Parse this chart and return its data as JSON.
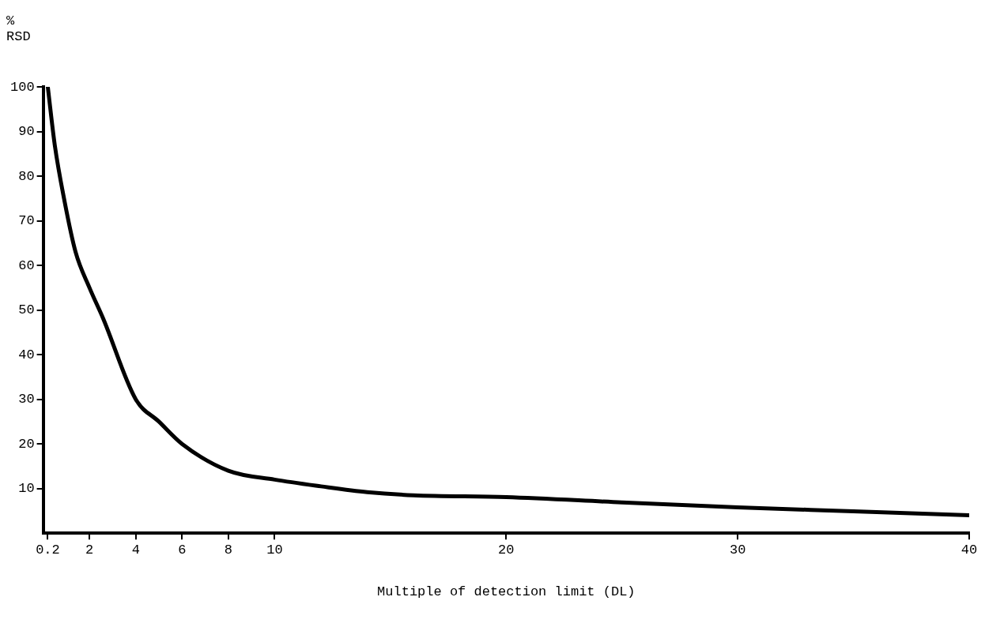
{
  "chart_data": {
    "type": "line",
    "ylabel": "%\nRSD",
    "xlabel": "Multiple of detection limit (DL)",
    "x": [
      0.2,
      0.5,
      0.9,
      1.4,
      2,
      2.6,
      4,
      5,
      6,
      8,
      10,
      12,
      14,
      16,
      20,
      25,
      30,
      35,
      40
    ],
    "series": [
      {
        "color": "#000000",
        "values": [
          100,
          87,
          75,
          63,
          55,
          48,
          30,
          25,
          20,
          14,
          12,
          10.5,
          9.2,
          8.5,
          8.1,
          6.9,
          5.8,
          4.9,
          4
        ]
      }
    ],
    "xlim": [
      0,
      40
    ],
    "xticks": [
      {
        "value": 0.2,
        "label": "0.2"
      },
      2,
      4,
      6,
      8,
      10,
      20,
      30,
      40
    ],
    "ylim": [
      0,
      100
    ],
    "yticks": [
      10,
      20,
      30,
      40,
      50,
      60,
      70,
      80,
      90,
      100
    ],
    "grid": false,
    "legend": false,
    "marker": "none",
    "line_style": "solid"
  }
}
